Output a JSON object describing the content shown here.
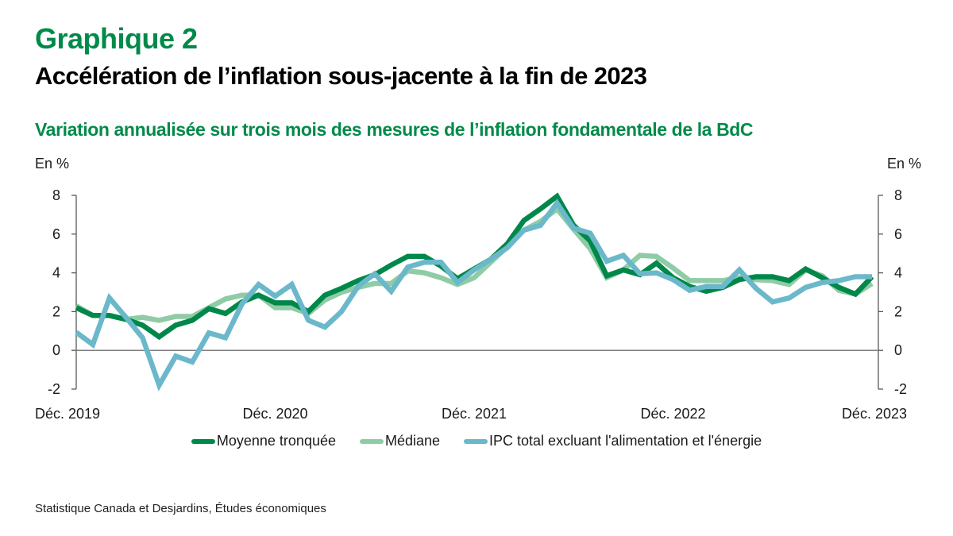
{
  "header": {
    "chart_number": "Graphique 2",
    "title": "Accélération de l’inflation sous-jacente à la fin de 2023",
    "subtitle": "Variation annualisée sur trois mois des mesures de l’inflation fondamentale de la BdC"
  },
  "axes": {
    "left_unit": "En %",
    "right_unit": "En %"
  },
  "source": "Statistique Canada et Desjardins, Études économiques",
  "colors": {
    "accent": "#008a4a",
    "moyenne": "#00874a",
    "mediane": "#8fcca5",
    "ipc": "#6bb8cb",
    "axis": "#595959"
  },
  "chart_data": {
    "type": "line",
    "title": "Variation annualisée sur trois mois des mesures de l’inflation fondamentale de la BdC",
    "xlabel": "",
    "ylabel": "En %",
    "x_start": "Déc. 2019",
    "x_end": "Déc. 2023",
    "frequency": "monthly",
    "x_tick_labels": [
      "Déc. 2019",
      "Déc. 2020",
      "Déc. 2021",
      "Déc. 2022",
      "Déc. 2023"
    ],
    "x_tick_index": [
      0,
      12,
      24,
      36,
      48
    ],
    "ylim": [
      -2,
      8
    ],
    "y_ticks": [
      -2,
      0,
      2,
      4,
      6,
      8
    ],
    "grid": false,
    "legend_position": "bottom",
    "series": [
      {
        "name": "Moyenne tronquée",
        "key": "moyenne",
        "values": [
          2.2,
          1.8,
          1.8,
          1.6,
          1.3,
          0.7,
          1.3,
          1.55,
          2.15,
          1.9,
          2.5,
          2.85,
          2.45,
          2.45,
          2.0,
          2.85,
          3.2,
          3.6,
          3.9,
          4.4,
          4.85,
          4.85,
          4.35,
          3.7,
          4.2,
          4.7,
          5.5,
          6.7,
          7.3,
          7.95,
          6.45,
          5.65,
          3.85,
          4.15,
          3.9,
          4.5,
          3.75,
          3.3,
          3.05,
          3.25,
          3.65,
          3.8,
          3.8,
          3.6,
          4.2,
          3.75,
          3.25,
          2.9,
          3.8
        ]
      },
      {
        "name": "Médiane",
        "key": "mediane",
        "values": [
          2.3,
          1.8,
          1.8,
          1.6,
          1.7,
          1.55,
          1.75,
          1.75,
          2.2,
          2.65,
          2.85,
          2.85,
          2.2,
          2.2,
          1.9,
          2.6,
          3.0,
          3.25,
          3.45,
          3.45,
          4.1,
          4.0,
          3.75,
          3.4,
          3.75,
          4.55,
          5.35,
          6.2,
          6.65,
          7.3,
          6.25,
          5.25,
          3.75,
          4.15,
          4.9,
          4.85,
          4.25,
          3.6,
          3.6,
          3.6,
          3.75,
          3.65,
          3.6,
          3.4,
          4.15,
          3.85,
          3.1,
          2.9,
          3.45
        ]
      },
      {
        "name": "IPC total excluant l'alimentation et l'énergie",
        "key": "ipc",
        "values": [
          0.93,
          0.3,
          2.7,
          1.7,
          0.65,
          -1.8,
          -0.3,
          -0.6,
          0.9,
          0.65,
          2.4,
          3.4,
          2.8,
          3.4,
          1.55,
          1.2,
          2.0,
          3.3,
          3.95,
          3.05,
          4.3,
          4.55,
          4.55,
          3.5,
          4.15,
          4.7,
          5.3,
          6.2,
          6.45,
          7.6,
          6.3,
          6.05,
          4.6,
          4.9,
          3.95,
          4.0,
          3.65,
          3.1,
          3.3,
          3.3,
          4.15,
          3.2,
          2.5,
          2.7,
          3.25,
          3.5,
          3.6,
          3.8,
          3.8
        ]
      }
    ]
  }
}
